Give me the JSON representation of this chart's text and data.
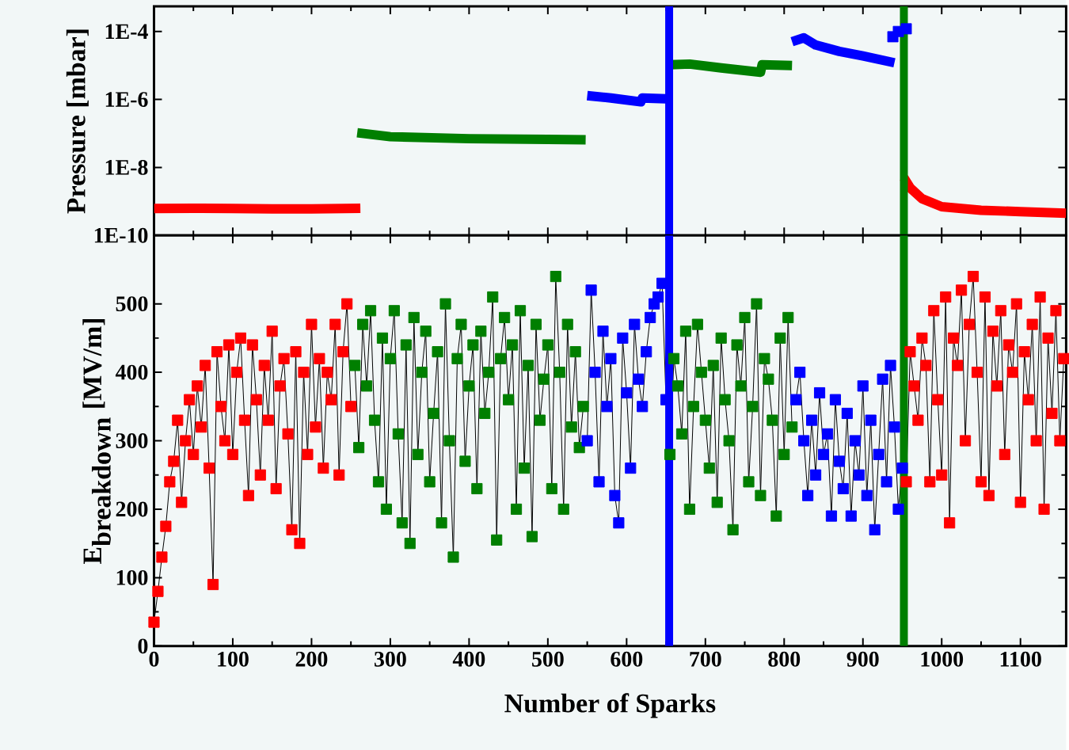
{
  "chart_data": [
    {
      "type": "line",
      "ylabel": "Pressure [mbar]",
      "log": "y",
      "tick_labels": "y",
      "xlim": [
        0,
        1158
      ],
      "xticks": [
        0,
        100,
        200,
        300,
        400,
        500,
        600,
        700,
        800,
        900,
        1000,
        1100
      ],
      "ylim": [
        1e-10,
        0.00055
      ],
      "yticks": [
        {
          "value": 1e-10,
          "label": "1E-10"
        },
        {
          "value": 1e-08,
          "label": "1E-8"
        },
        {
          "value": 1e-06,
          "label": "1E-6"
        },
        {
          "value": 0.0001,
          "label": "1E-4"
        }
      ],
      "ref_lines": [
        {
          "axis": "x",
          "value": 654,
          "color": "#0000ff"
        },
        {
          "axis": "x",
          "value": 952,
          "color": "#007f00"
        }
      ],
      "series": [
        {
          "color": "#ff0000",
          "x": [
            0,
            50,
            100,
            150,
            200,
            262
          ],
          "values": [
            6.2e-10,
            6.3e-10,
            6.2e-10,
            6e-10,
            6e-10,
            6.3e-10
          ]
        },
        {
          "color": "#007f00",
          "x": [
            258,
            300,
            400,
            500,
            548
          ],
          "values": [
            1.05e-07,
            8e-08,
            7e-08,
            6.7e-08,
            6.5e-08
          ]
        },
        {
          "color": "#0000ff",
          "x": [
            550,
            580,
            618,
            620,
            650
          ],
          "values": [
            1.3e-06,
            1.1e-06,
            8.5e-07,
            1.1e-06,
            1.05e-06
          ]
        },
        {
          "color": "#007f00",
          "x": [
            655,
            680,
            720,
            770,
            772,
            810
          ],
          "values": [
            1.05e-05,
            1.1e-05,
            8.5e-06,
            6.3e-06,
            1.05e-05,
            1e-05
          ]
        },
        {
          "color": "#0000ff",
          "x": [
            810,
            825,
            840,
            870,
            900,
            940
          ],
          "values": [
            5e-05,
            6.5e-05,
            4e-05,
            2.6e-05,
            1.9e-05,
            1.2e-05
          ]
        },
        {
          "color": "#0000ff",
          "type": "scatter",
          "x": [
            938,
            945,
            955
          ],
          "values": [
            7e-05,
            0.0001,
            0.00012
          ]
        },
        {
          "color": "#ff0000",
          "x": [
            952,
            960,
            975,
            1000,
            1050,
            1100,
            1158
          ],
          "values": [
            5e-09,
            2.5e-09,
            1.2e-09,
            7e-10,
            5.5e-10,
            5e-10,
            4.5e-10
          ]
        }
      ]
    },
    {
      "type": "line",
      "ylabel": "\\textbf{E}_{\\textbf{breakdown}}\\ \\textbf{[MV/m]}",
      "xlabel": "Number of Sparks",
      "marker": "square",
      "xlim": [
        0,
        1158
      ],
      "xticks": [
        0,
        100,
        200,
        300,
        400,
        500,
        600,
        700,
        800,
        900,
        1000,
        1100
      ],
      "ylim": [
        0,
        600
      ],
      "yticks": [
        0,
        100,
        200,
        300,
        400,
        500
      ],
      "ref_lines": [
        {
          "axis": "x",
          "value": 654,
          "color": "#0000ff"
        },
        {
          "axis": "x",
          "value": 952,
          "color": "#007f00"
        }
      ],
      "series": [
        {
          "color": "#ff0000",
          "x": [
            0,
            5,
            10,
            15,
            20,
            25,
            30,
            35,
            40,
            45,
            50,
            55,
            60,
            65,
            70,
            75,
            80,
            85,
            90,
            95,
            100,
            105,
            110,
            115,
            120,
            125,
            130,
            135,
            140,
            145,
            150,
            155,
            160,
            165,
            170,
            175,
            180,
            185,
            190,
            195,
            200,
            205,
            210,
            215,
            220,
            225,
            230,
            235,
            240,
            245,
            250
          ],
          "values": [
            35,
            80,
            130,
            175,
            240,
            270,
            330,
            210,
            300,
            360,
            280,
            380,
            320,
            410,
            260,
            90,
            430,
            350,
            300,
            440,
            280,
            400,
            450,
            330,
            220,
            440,
            360,
            250,
            410,
            330,
            460,
            230,
            380,
            420,
            310,
            170,
            430,
            150,
            400,
            280,
            470,
            320,
            420,
            260,
            400,
            360,
            470,
            250,
            430,
            500,
            350
          ]
        },
        {
          "color": "#007f00",
          "x": [
            255,
            260,
            265,
            270,
            275,
            280,
            285,
            290,
            295,
            300,
            305,
            310,
            315,
            320,
            325,
            330,
            335,
            340,
            345,
            350,
            355,
            360,
            365,
            370,
            375,
            380,
            385,
            390,
            395,
            400,
            405,
            410,
            415,
            420,
            425,
            430,
            435,
            440,
            445,
            450,
            455,
            460,
            465,
            470,
            475,
            480,
            485,
            490,
            495,
            500,
            505,
            510,
            515,
            520,
            525,
            530,
            535,
            540,
            545
          ],
          "values": [
            410,
            290,
            470,
            380,
            490,
            330,
            240,
            450,
            200,
            420,
            490,
            310,
            180,
            440,
            150,
            480,
            280,
            400,
            460,
            240,
            340,
            430,
            180,
            500,
            300,
            130,
            420,
            470,
            270,
            380,
            440,
            230,
            460,
            340,
            400,
            510,
            155,
            420,
            480,
            360,
            440,
            200,
            490,
            260,
            410,
            160,
            470,
            330,
            390,
            440,
            230,
            540,
            400,
            200,
            470,
            320,
            430,
            290,
            350
          ]
        },
        {
          "color": "#0000ff",
          "x": [
            550,
            555,
            560,
            565,
            570,
            575,
            580,
            585,
            590,
            595,
            600,
            605,
            610,
            615,
            620,
            625,
            630,
            635,
            640,
            645,
            650
          ],
          "values": [
            300,
            520,
            400,
            240,
            460,
            350,
            420,
            220,
            180,
            450,
            370,
            260,
            470,
            390,
            350,
            430,
            480,
            500,
            510,
            530,
            360
          ]
        },
        {
          "color": "#007f00",
          "x": [
            655,
            660,
            665,
            670,
            675,
            680,
            685,
            690,
            695,
            700,
            705,
            710,
            715,
            720,
            725,
            730,
            735,
            740,
            745,
            750,
            755,
            760,
            765,
            770,
            775,
            780,
            785,
            790,
            795,
            800,
            805,
            810
          ],
          "values": [
            280,
            420,
            380,
            310,
            460,
            200,
            350,
            470,
            400,
            330,
            260,
            410,
            210,
            450,
            360,
            300,
            170,
            440,
            380,
            480,
            240,
            350,
            500,
            220,
            420,
            390,
            330,
            190,
            450,
            280,
            480,
            320
          ]
        },
        {
          "color": "#0000ff",
          "x": [
            815,
            820,
            825,
            830,
            835,
            840,
            845,
            850,
            855,
            860,
            865,
            870,
            875,
            880,
            885,
            890,
            895,
            900,
            905,
            910,
            915,
            920,
            925,
            930,
            935,
            940,
            945,
            950
          ],
          "values": [
            360,
            400,
            300,
            220,
            330,
            250,
            370,
            280,
            310,
            190,
            360,
            270,
            230,
            340,
            190,
            300,
            250,
            380,
            220,
            330,
            170,
            280,
            390,
            240,
            410,
            320,
            200,
            260
          ]
        },
        {
          "color": "#ff0000",
          "x": [
            955,
            960,
            965,
            970,
            975,
            980,
            985,
            990,
            995,
            1000,
            1005,
            1010,
            1015,
            1020,
            1025,
            1030,
            1035,
            1040,
            1045,
            1050,
            1055,
            1060,
            1065,
            1070,
            1075,
            1080,
            1085,
            1090,
            1095,
            1100,
            1105,
            1110,
            1115,
            1120,
            1125,
            1130,
            1135,
            1140,
            1145,
            1150,
            1155
          ],
          "values": [
            240,
            430,
            380,
            330,
            450,
            410,
            240,
            490,
            360,
            250,
            510,
            180,
            450,
            410,
            520,
            300,
            470,
            540,
            400,
            240,
            510,
            220,
            460,
            380,
            490,
            280,
            440,
            400,
            500,
            210,
            430,
            360,
            470,
            300,
            510,
            200,
            450,
            340,
            490,
            300,
            420
          ]
        }
      ]
    }
  ]
}
